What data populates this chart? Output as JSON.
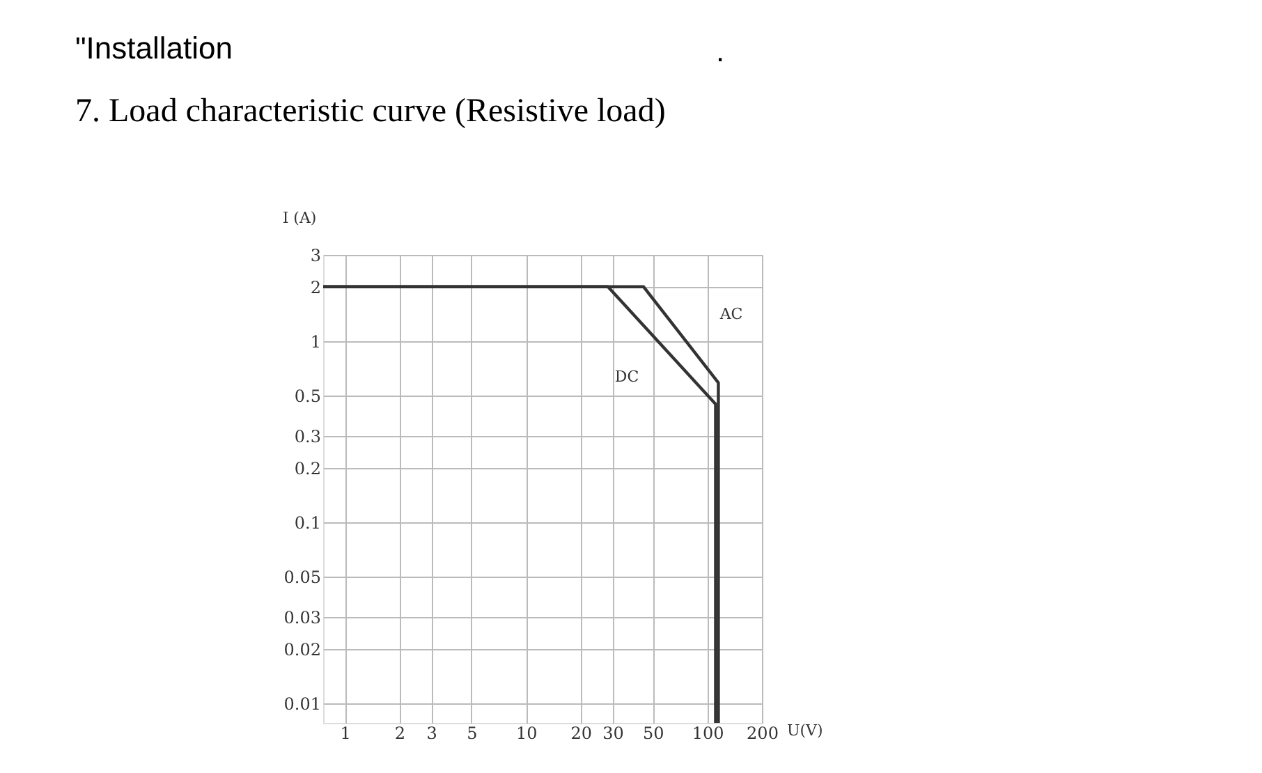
{
  "chart_data": {
    "type": "line",
    "title": "7. Load characteristic curve (Resistive load)",
    "xlabel": "U(V)",
    "ylabel": "I (A)",
    "annotations": [
      "\"Installation",
      ".",
      "AC",
      "DC"
    ],
    "log": "xy",
    "grid": true,
    "marker": "none",
    "line_style": "solid",
    "xlim": [
      0.76,
      200
    ],
    "ylim": [
      0.0078,
      3
    ],
    "xticks": [
      1,
      2,
      3,
      5,
      10,
      20,
      30,
      50,
      100,
      200
    ],
    "yticks": [
      0.01,
      0.02,
      0.03,
      0.05,
      0.1,
      0.2,
      0.3,
      0.5,
      1,
      2,
      3
    ],
    "series": [
      {
        "color": "#333333",
        "x": [
          0.76,
          28.3,
          111,
          111
        ],
        "values": [
          2,
          2,
          0.45,
          0.0078
        ]
      },
      {
        "color": "#333333",
        "x": [
          0.76,
          44.5,
          115,
          115
        ],
        "values": [
          2,
          2,
          0.59,
          0.0078
        ]
      }
    ]
  }
}
